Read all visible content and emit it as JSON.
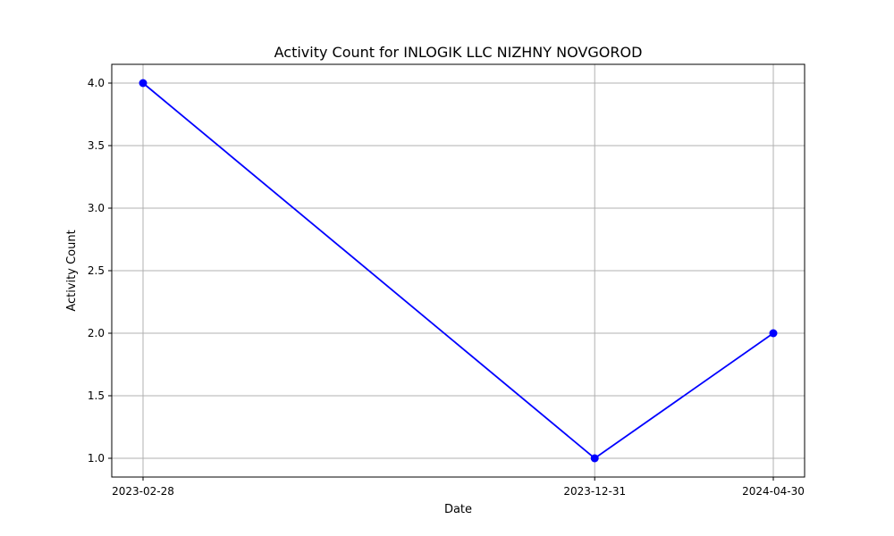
{
  "chart_data": {
    "type": "line",
    "title": "Activity Count for INLOGIK LLC NIZHNY NOVGOROD",
    "xlabel": "Date",
    "ylabel": "Activity Count",
    "x": [
      "2023-02-28",
      "2023-12-31",
      "2024-04-30"
    ],
    "x_tick_labels": [
      "2023-02-28",
      "2023-12-31",
      "2024-04-30"
    ],
    "series": [
      {
        "values": [
          4.0,
          1.0,
          2.0
        ],
        "color": "#0000ff",
        "marker": "circle"
      }
    ],
    "y_ticks": [
      "1.0",
      "1.5",
      "2.0",
      "2.5",
      "3.0",
      "3.5",
      "4.0"
    ],
    "ylim": [
      0.85,
      4.15
    ],
    "grid": true,
    "legend": "none"
  }
}
